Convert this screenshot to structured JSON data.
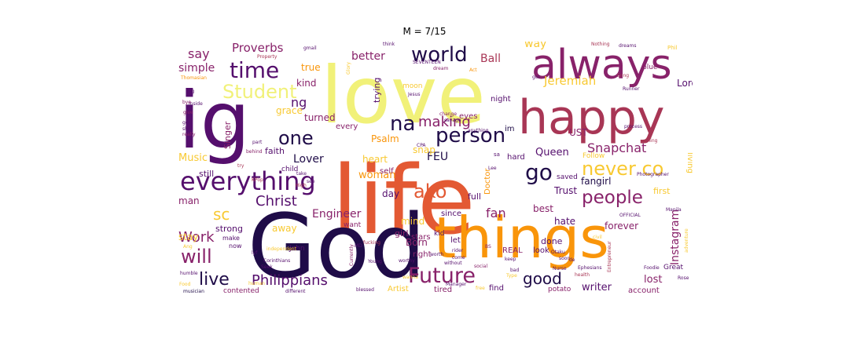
{
  "title": "M = 7/15",
  "palette": {
    "d": "#1f0c48",
    "p": "#550f6d",
    "m": "#88226a",
    "r": "#a83655",
    "o": "#e35933",
    "or": "#f9950a",
    "y": "#f8c932",
    "ly": "#f1f179"
  },
  "words": [
    {
      "t": "life",
      "s": 100,
      "c": "o"
    },
    {
      "t": "love",
      "s": 92,
      "c": "ly"
    },
    {
      "t": "God",
      "s": 95,
      "c": "d"
    },
    {
      "t": "things",
      "s": 72,
      "c": "or"
    },
    {
      "t": "happy",
      "s": 58,
      "c": "r"
    },
    {
      "t": "ig",
      "s": 80,
      "c": "p"
    },
    {
      "t": "always",
      "s": 50,
      "c": "m"
    },
    {
      "t": "everything",
      "s": 30,
      "c": "p"
    },
    {
      "t": "person",
      "s": 26,
      "c": "d"
    },
    {
      "t": "Future",
      "s": 25,
      "c": "m"
    },
    {
      "t": "time",
      "s": 25,
      "c": "p"
    },
    {
      "t": "world",
      "s": 24,
      "c": "d"
    },
    {
      "t": "na",
      "s": 24,
      "c": "d"
    },
    {
      "t": "go",
      "s": 25,
      "c": "d"
    },
    {
      "t": "never co",
      "s": 22,
      "c": "y"
    },
    {
      "t": "people",
      "s": 21,
      "c": "m"
    },
    {
      "t": "Student",
      "s": 21,
      "c": "ly"
    },
    {
      "t": "one",
      "s": 21,
      "c": "d"
    },
    {
      "t": "ako",
      "s": 21,
      "c": "o"
    },
    {
      "t": "will",
      "s": 21,
      "c": "m"
    },
    {
      "t": "live",
      "s": 21,
      "c": "d"
    },
    {
      "t": "Christ",
      "s": 17,
      "c": "p"
    },
    {
      "t": "Work",
      "s": 17,
      "c": "m"
    },
    {
      "t": "Philippians",
      "s": 17,
      "c": "p"
    },
    {
      "t": "good",
      "s": 17,
      "c": "d"
    },
    {
      "t": "sc",
      "s": 17,
      "c": "y"
    },
    {
      "t": "making",
      "s": 16,
      "c": "m"
    },
    {
      "t": "Snapchat",
      "s": 15,
      "c": "m"
    },
    {
      "t": "Instagram",
      "s": 14,
      "c": "m"
    },
    {
      "t": "say",
      "s": 15,
      "c": "m"
    },
    {
      "t": "Proverbs",
      "s": 14,
      "c": "m"
    },
    {
      "t": "Jeremiah",
      "s": 14,
      "c": "y"
    },
    {
      "t": "ng",
      "s": 15,
      "c": "p"
    },
    {
      "t": "FEU",
      "s": 13,
      "c": "d"
    },
    {
      "t": "fan",
      "s": 14,
      "c": "m"
    },
    {
      "t": "Lover",
      "s": 13,
      "c": "d"
    },
    {
      "t": "Engineer",
      "s": 13,
      "c": "m"
    },
    {
      "t": "simple",
      "s": 13,
      "c": "m"
    },
    {
      "t": "better",
      "s": 13,
      "c": "m"
    },
    {
      "t": "Ball",
      "s": 13,
      "c": "r"
    },
    {
      "t": "way",
      "s": 13,
      "c": "y"
    },
    {
      "t": "Queen",
      "s": 12,
      "c": "p"
    },
    {
      "t": "woman",
      "s": 12,
      "c": "or"
    },
    {
      "t": "Music",
      "s": 12,
      "c": "y"
    },
    {
      "t": "writer",
      "s": 12,
      "c": "p"
    },
    {
      "t": "lost",
      "s": 12,
      "c": "m"
    },
    {
      "t": "forever",
      "s": 11,
      "c": "m"
    },
    {
      "t": "best",
      "s": 11,
      "c": "m"
    },
    {
      "t": "fangirl",
      "s": 11,
      "c": "d"
    },
    {
      "t": "Lord",
      "s": 11,
      "c": "p"
    },
    {
      "t": "Trust",
      "s": 11,
      "c": "p"
    },
    {
      "t": "UST",
      "s": 11,
      "c": "m"
    },
    {
      "t": "Born",
      "s": 11,
      "c": "m"
    },
    {
      "t": "kind",
      "s": 11,
      "c": "m"
    },
    {
      "t": "true",
      "s": 11,
      "c": "or"
    },
    {
      "t": "turned",
      "s": 11,
      "c": "m"
    },
    {
      "t": "heart",
      "s": 11,
      "c": "y"
    },
    {
      "t": "Psalm",
      "s": 11,
      "c": "or"
    },
    {
      "t": "grace",
      "s": 11,
      "c": "y"
    },
    {
      "t": "trying",
      "s": 10,
      "c": "p"
    },
    {
      "t": "day",
      "s": 11,
      "c": "p"
    },
    {
      "t": "man",
      "s": 11,
      "c": "m"
    },
    {
      "t": "stay",
      "s": 11,
      "c": "y"
    },
    {
      "t": "away",
      "s": 11,
      "c": "y"
    },
    {
      "t": "hate",
      "s": 11,
      "c": "p"
    },
    {
      "t": "mind",
      "s": 11,
      "c": "y"
    },
    {
      "t": "still",
      "s": 10,
      "c": "p"
    },
    {
      "t": "strong",
      "s": 10,
      "c": "p"
    },
    {
      "t": "Singer",
      "s": 10,
      "c": "m"
    },
    {
      "t": "faith",
      "s": 10,
      "c": "p"
    },
    {
      "t": "snap",
      "s": 11,
      "c": "y"
    },
    {
      "t": "girl",
      "s": 10,
      "c": "m"
    },
    {
      "t": "full",
      "s": 10,
      "c": "p"
    },
    {
      "t": "done",
      "s": 10,
      "c": "p"
    },
    {
      "t": "first",
      "s": 10,
      "c": "y"
    },
    {
      "t": "living",
      "s": 9,
      "c": "y"
    },
    {
      "t": "eyes",
      "s": 9,
      "c": "m"
    },
    {
      "t": "night",
      "s": 9,
      "c": "p"
    },
    {
      "t": "hard",
      "s": 9,
      "c": "p"
    },
    {
      "t": "im",
      "s": 9,
      "c": "d"
    },
    {
      "t": "Doctor",
      "s": 9,
      "c": "or"
    },
    {
      "t": "since",
      "s": 9,
      "c": "p"
    },
    {
      "t": "self",
      "s": 9,
      "c": "m"
    },
    {
      "t": "every",
      "s": 9,
      "c": "m"
    },
    {
      "t": "stars",
      "s": 9,
      "c": "m"
    },
    {
      "t": "let",
      "s": 9,
      "c": "p"
    },
    {
      "t": "right",
      "s": 9,
      "c": "m"
    },
    {
      "t": "REAL",
      "s": 9,
      "c": "m"
    },
    {
      "t": "look",
      "s": 9,
      "c": "p"
    },
    {
      "t": "find",
      "s": 9,
      "c": "p"
    },
    {
      "t": "tired",
      "s": 9,
      "c": "m"
    },
    {
      "t": "Artist",
      "s": 9,
      "c": "y"
    },
    {
      "t": "account",
      "s": 9,
      "c": "m"
    },
    {
      "t": "Great",
      "s": 8,
      "c": "p"
    },
    {
      "t": "contented",
      "s": 8,
      "c": "m"
    },
    {
      "t": "saved",
      "s": 8,
      "c": "p"
    },
    {
      "t": "Follow",
      "s": 8,
      "c": "y"
    },
    {
      "t": "kid",
      "s": 8,
      "c": "p"
    },
    {
      "t": "John",
      "s": 8,
      "c": "p"
    },
    {
      "t": "want",
      "s": 8,
      "c": "m"
    },
    {
      "t": "child",
      "s": 8,
      "c": "p"
    },
    {
      "t": "moon",
      "s": 8,
      "c": "y"
    },
    {
      "t": "blue",
      "s": 8,
      "c": "m"
    },
    {
      "t": "Song",
      "s": 6,
      "c": "r"
    },
    {
      "t": "Phil",
      "s": 6,
      "c": "y"
    },
    {
      "t": "Nothing",
      "s": 6,
      "c": "r"
    },
    {
      "t": "dreams",
      "s": 6,
      "c": "p"
    },
    {
      "t": "think",
      "s": 6,
      "c": "p"
    },
    {
      "t": "gmail",
      "s": 6,
      "c": "p"
    },
    {
      "t": "Property",
      "s": 6,
      "c": "r"
    },
    {
      "t": "SEVENTEEN",
      "s": 6,
      "c": "p"
    },
    {
      "t": "dream",
      "s": 6,
      "c": "m"
    },
    {
      "t": "Thomasian",
      "s": 6,
      "c": "or"
    },
    {
      "t": "Jesus",
      "s": 6,
      "c": "p"
    },
    {
      "t": "got",
      "s": 6,
      "c": "p"
    },
    {
      "t": "Runner",
      "s": 6,
      "c": "p"
    },
    {
      "t": "inside",
      "s": 6,
      "c": "p"
    },
    {
      "t": "big",
      "s": 6,
      "c": "p"
    },
    {
      "t": "bye",
      "s": 6,
      "c": "m"
    },
    {
      "t": "give",
      "s": 6,
      "c": "m"
    },
    {
      "t": "go",
      "s": 6,
      "c": "p"
    },
    {
      "t": "shit",
      "s": 6,
      "c": "p"
    },
    {
      "t": "really",
      "s": 6,
      "c": "m"
    },
    {
      "t": "Glory",
      "s": 6,
      "c": "y"
    },
    {
      "t": "Act",
      "s": 6,
      "c": "or"
    },
    {
      "t": "change",
      "s": 6,
      "c": "m"
    },
    {
      "t": "savage",
      "s": 6,
      "c": "p"
    },
    {
      "t": "anything",
      "s": 6,
      "c": "p"
    },
    {
      "t": "process",
      "s": 6,
      "c": "p"
    },
    {
      "t": "thing",
      "s": 6,
      "c": "r"
    },
    {
      "t": "Manila",
      "s": 6,
      "c": "p"
    },
    {
      "t": "Photographer",
      "s": 6,
      "c": "p"
    },
    {
      "t": "sa",
      "s": 6,
      "c": "p"
    },
    {
      "t": "KPop",
      "s": 6,
      "c": "r"
    },
    {
      "t": "CPA",
      "s": 6,
      "c": "p"
    },
    {
      "t": "see",
      "s": 6,
      "c": "p"
    },
    {
      "t": "Lee",
      "s": 6,
      "c": "p"
    },
    {
      "t": "High",
      "s": 6,
      "c": "r"
    },
    {
      "t": "behind",
      "s": 6,
      "c": "m"
    },
    {
      "t": "part",
      "s": 6,
      "c": "p"
    },
    {
      "t": "take",
      "s": 6,
      "c": "p"
    },
    {
      "t": "try",
      "s": 6,
      "c": "r"
    },
    {
      "t": "lyf",
      "s": 6,
      "c": "p"
    },
    {
      "t": "OFFICIAL",
      "s": 6,
      "c": "p"
    },
    {
      "t": "civil",
      "s": 6,
      "c": "y"
    },
    {
      "t": "Ang",
      "s": 6,
      "c": "y"
    },
    {
      "t": "make",
      "s": 8,
      "c": "p"
    },
    {
      "t": "now",
      "s": 8,
      "c": "p"
    },
    {
      "t": "independent",
      "s": 6,
      "c": "y"
    },
    {
      "t": "Corinthians",
      "s": 6,
      "c": "p"
    },
    {
      "t": "Seek",
      "s": 6,
      "c": "p"
    },
    {
      "t": "MD",
      "s": 6,
      "c": "p"
    },
    {
      "t": "humble",
      "s": 6,
      "c": "p"
    },
    {
      "t": "Food",
      "s": 6,
      "c": "y"
    },
    {
      "t": "musician",
      "s": 6,
      "c": "d"
    },
    {
      "t": "human",
      "s": 6,
      "c": "y"
    },
    {
      "t": "different",
      "s": 6,
      "c": "p"
    },
    {
      "t": "Young",
      "s": 6,
      "c": "p"
    },
    {
      "t": "fucking",
      "s": 6,
      "c": "r"
    },
    {
      "t": "Currently",
      "s": 6,
      "c": "m"
    },
    {
      "t": "worthy",
      "s": 6,
      "c": "p"
    },
    {
      "t": "come",
      "s": 6,
      "c": "p"
    },
    {
      "t": "without",
      "s": 6,
      "c": "p"
    },
    {
      "t": "social",
      "s": 6,
      "c": "m"
    },
    {
      "t": "keep",
      "s": 6,
      "c": "p"
    },
    {
      "t": "soon",
      "s": 6,
      "c": "p"
    },
    {
      "t": "BS",
      "s": 6,
      "c": "m"
    },
    {
      "t": "bad",
      "s": 6,
      "c": "p"
    },
    {
      "t": "Type",
      "s": 6,
      "c": "y"
    },
    {
      "t": "Nurse",
      "s": 6,
      "c": "p"
    },
    {
      "t": "health",
      "s": 6,
      "c": "r"
    },
    {
      "t": "Otaku",
      "s": 6,
      "c": "p"
    },
    {
      "t": "de",
      "s": 6,
      "c": "p"
    },
    {
      "t": "Manager",
      "s": 6,
      "c": "p"
    },
    {
      "t": "Ephesians",
      "s": 6,
      "c": "p"
    },
    {
      "t": "Entrepreneur",
      "s": 6,
      "c": "r"
    },
    {
      "t": "Foodie",
      "s": 6,
      "c": "p"
    },
    {
      "t": "Rose",
      "s": 6,
      "c": "p"
    },
    {
      "t": "adventure",
      "s": 6,
      "c": "y"
    },
    {
      "t": "wanna",
      "s": 6,
      "c": "y"
    },
    {
      "t": "blessed",
      "s": 6,
      "c": "p"
    },
    {
      "t": "free",
      "s": 6,
      "c": "y"
    },
    {
      "t": "potato",
      "s": 9,
      "c": "m"
    },
    {
      "t": "rider",
      "s": 6,
      "c": "p"
    },
    {
      "t": "worth",
      "s": 6,
      "c": "p"
    }
  ]
}
